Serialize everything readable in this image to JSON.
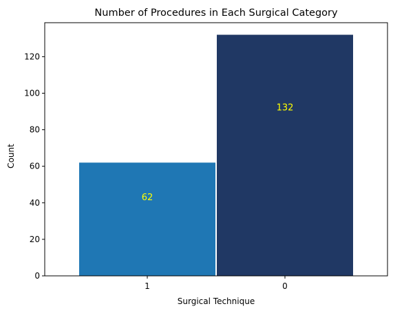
{
  "chart_data": {
    "type": "bar",
    "title": "Number of Procedures in Each Surgical Category",
    "xlabel": "Surgical Technique",
    "ylabel": "Count",
    "categories": [
      "1",
      "0"
    ],
    "values": [
      62,
      132
    ],
    "bar_colors": [
      "#1f77b4",
      "#203864"
    ],
    "bar_label_color": "#ffff00",
    "ylim": [
      0,
      138.6
    ],
    "yticks": [
      0,
      20,
      40,
      60,
      80,
      100,
      120
    ],
    "grid": false,
    "legend": "none"
  }
}
